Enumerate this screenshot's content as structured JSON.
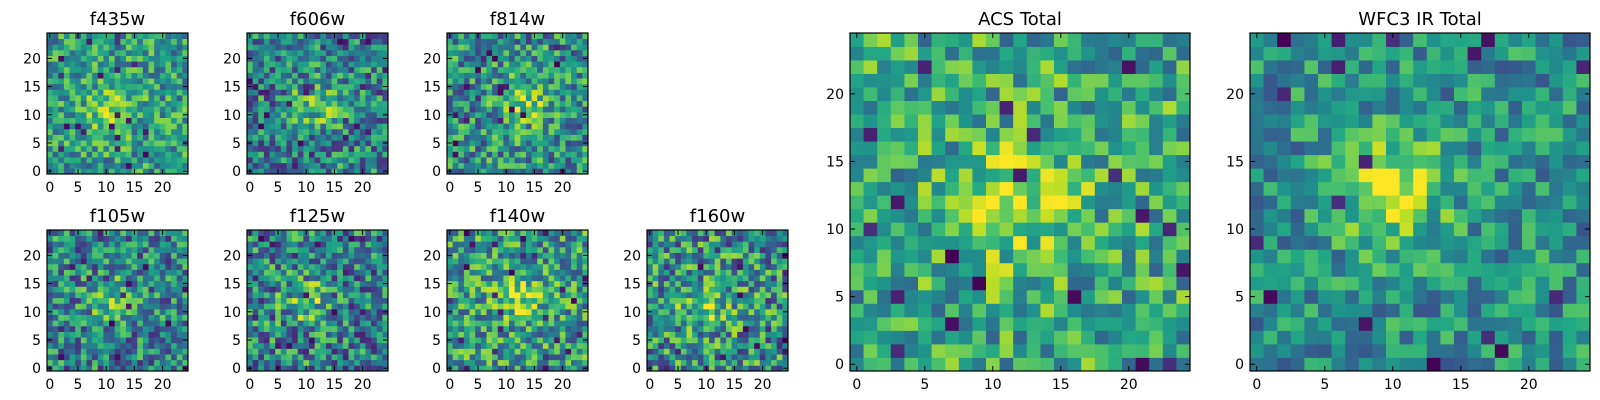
{
  "chart_data": [
    {
      "type": "heatmap",
      "title": "f435w",
      "colormap": "viridis",
      "xlim": [
        0,
        24
      ],
      "ylim": [
        0,
        24
      ],
      "x_ticks": [
        0,
        5,
        10,
        15,
        20
      ],
      "y_ticks": [
        0,
        5,
        10,
        15,
        20
      ],
      "grid": false,
      "x_tick_labels": [
        "0",
        "5",
        "10",
        "15",
        "20"
      ],
      "y_tick_labels": [
        "0",
        "5",
        "10",
        "15",
        "20"
      ],
      "values_description": "25x25 pixel cutout, mostly green-yellow noise with faint central source and scattered dark pixels"
    },
    {
      "type": "heatmap",
      "title": "f606w",
      "colormap": "viridis",
      "xlim": [
        0,
        24
      ],
      "ylim": [
        0,
        24
      ],
      "x_ticks": [
        0,
        5,
        10,
        15,
        20
      ],
      "y_ticks": [
        0,
        5,
        10,
        15,
        20
      ],
      "grid": false,
      "x_tick_labels": [
        "0",
        "5",
        "10",
        "15",
        "20"
      ],
      "y_tick_labels": [
        "0",
        "5",
        "10",
        "15",
        "20"
      ]
    },
    {
      "type": "heatmap",
      "title": "f814w",
      "colormap": "viridis",
      "xlim": [
        0,
        24
      ],
      "ylim": [
        0,
        24
      ],
      "x_ticks": [
        0,
        5,
        10,
        15,
        20
      ],
      "y_ticks": [
        0,
        5,
        10,
        15,
        20
      ],
      "grid": false,
      "x_tick_labels": [
        "0",
        "5",
        "10",
        "15",
        "20"
      ],
      "y_tick_labels": [
        "0",
        "5",
        "10",
        "15",
        "20"
      ]
    },
    {
      "type": "heatmap",
      "title": "f105w",
      "colormap": "viridis",
      "xlim": [
        0,
        24
      ],
      "ylim": [
        0,
        24
      ],
      "x_ticks": [
        0,
        5,
        10,
        15,
        20
      ],
      "y_ticks": [
        0,
        5,
        10,
        15,
        20
      ],
      "grid": false,
      "x_tick_labels": [
        "0",
        "5",
        "10",
        "15",
        "20"
      ],
      "y_tick_labels": [
        "0",
        "5",
        "10",
        "15",
        "20"
      ]
    },
    {
      "type": "heatmap",
      "title": "f125w",
      "colormap": "viridis",
      "xlim": [
        0,
        24
      ],
      "ylim": [
        0,
        24
      ],
      "x_ticks": [
        0,
        5,
        10,
        15,
        20
      ],
      "y_ticks": [
        0,
        5,
        10,
        15,
        20
      ],
      "grid": false,
      "x_tick_labels": [
        "0",
        "5",
        "10",
        "15",
        "20"
      ],
      "y_tick_labels": [
        "0",
        "5",
        "10",
        "15",
        "20"
      ]
    },
    {
      "type": "heatmap",
      "title": "f140w",
      "colormap": "viridis",
      "xlim": [
        0,
        24
      ],
      "ylim": [
        0,
        24
      ],
      "x_ticks": [
        0,
        5,
        10,
        15,
        20
      ],
      "y_ticks": [
        0,
        5,
        10,
        15,
        20
      ],
      "grid": false,
      "x_tick_labels": [
        "0",
        "5",
        "10",
        "15",
        "20"
      ],
      "y_tick_labels": [
        "0",
        "5",
        "10",
        "15",
        "20"
      ]
    },
    {
      "type": "heatmap",
      "title": "f160w",
      "colormap": "viridis",
      "xlim": [
        0,
        24
      ],
      "ylim": [
        0,
        24
      ],
      "x_ticks": [
        0,
        5,
        10,
        15,
        20
      ],
      "y_ticks": [
        0,
        5,
        10,
        15,
        20
      ],
      "grid": false,
      "x_tick_labels": [
        "0",
        "5",
        "10",
        "15",
        "20"
      ],
      "y_tick_labels": [
        "0",
        "5",
        "10",
        "15",
        "20"
      ]
    },
    {
      "type": "heatmap",
      "title": "ACS Total",
      "colormap": "viridis",
      "xlim": [
        0,
        24
      ],
      "ylim": [
        0,
        24
      ],
      "x_ticks": [
        0,
        5,
        10,
        15,
        20
      ],
      "y_ticks": [
        0,
        5,
        10,
        15,
        20
      ],
      "grid": false,
      "x_tick_labels": [
        "0",
        "5",
        "10",
        "15",
        "20"
      ],
      "y_tick_labels": [
        "0",
        "5",
        "10",
        "15",
        "20"
      ]
    },
    {
      "type": "heatmap",
      "title": "WFC3 IR Total",
      "colormap": "viridis",
      "xlim": [
        0,
        24
      ],
      "ylim": [
        0,
        24
      ],
      "x_ticks": [
        0,
        5,
        10,
        15,
        20
      ],
      "y_ticks": [
        0,
        5,
        10,
        15,
        20
      ],
      "grid": false,
      "x_tick_labels": [
        "0",
        "5",
        "10",
        "15",
        "20"
      ],
      "y_tick_labels": [
        "0",
        "5",
        "10",
        "15",
        "20"
      ]
    }
  ]
}
